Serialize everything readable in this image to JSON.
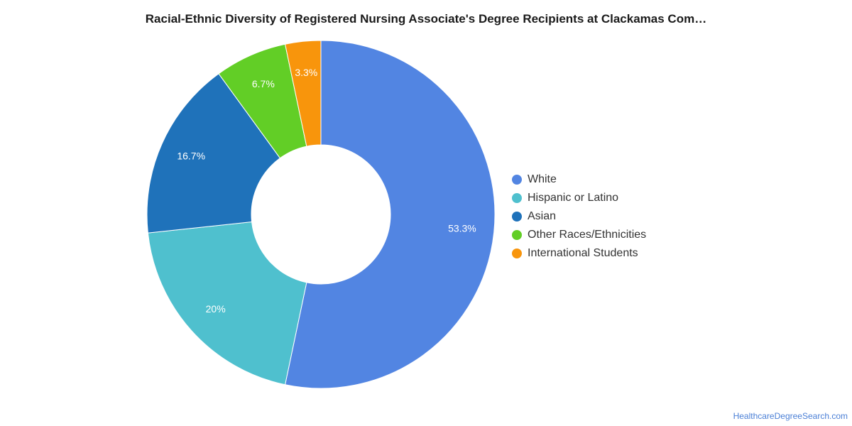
{
  "chart_data": {
    "type": "pie",
    "title": "Racial-Ethnic Diversity of Registered Nursing Associate's Degree Recipients at Clackamas Com…",
    "categories": [
      "White",
      "Hispanic or Latino",
      "Asian",
      "Other Races/Ethnicities",
      "International Students"
    ],
    "values": [
      53.3,
      20,
      16.7,
      6.7,
      3.3
    ],
    "data_labels": [
      "53.3%",
      "20%",
      "16.7%",
      "6.7%",
      "3.3%"
    ],
    "colors": [
      "#5285e2",
      "#4fc0ce",
      "#1f72ba",
      "#62ce26",
      "#f8950c"
    ],
    "donut": true,
    "legend_position": "right"
  },
  "watermark": "HealthcareDegreeSearch.com"
}
